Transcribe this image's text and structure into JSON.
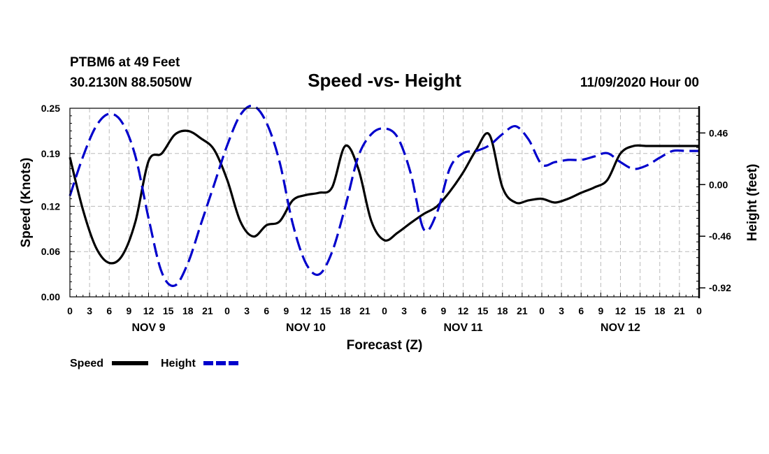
{
  "header": {
    "station": "PTBM6 at 49 Feet",
    "location": "30.2130N 88.5050W",
    "title": "Speed -vs- Height",
    "date": "11/09/2020 Hour 00"
  },
  "colors": {
    "speed": "#000000",
    "height": "#0000cc",
    "grid": "#bbbbbb"
  },
  "chart_data": {
    "type": "line",
    "title": "Speed -vs- Height",
    "xlabel": "Forecast (Z)",
    "ylabel": "Speed (Knots)",
    "ylabel_right": "Height (feet)",
    "xlim": [
      0,
      96
    ],
    "ylim": [
      0,
      0.25
    ],
    "ylim_right": [
      -1.0,
      0.68
    ],
    "x_tick_labels": [
      "0",
      "3",
      "6",
      "9",
      "12",
      "15",
      "18",
      "21",
      "0",
      "3",
      "6",
      "9",
      "12",
      "15",
      "18",
      "21",
      "0",
      "3",
      "6",
      "9",
      "12",
      "15",
      "18",
      "21",
      "0",
      "3",
      "6",
      "9",
      "12",
      "15",
      "18",
      "21",
      "0"
    ],
    "day_labels": [
      {
        "label": "NOV 9",
        "hour": 12
      },
      {
        "label": "NOV 10",
        "hour": 36
      },
      {
        "label": "NOV 11",
        "hour": 60
      },
      {
        "label": "NOV 12",
        "hour": 84
      }
    ],
    "y_ticks": [
      0.0,
      0.06,
      0.12,
      0.19,
      0.25
    ],
    "y_tick_labels": [
      "0.00",
      "0.06",
      "0.12",
      "0.19",
      "0.25"
    ],
    "y_right_ticks": [
      -0.92,
      -0.46,
      0.0,
      0.46
    ],
    "y_right_tick_labels": [
      "-0.92",
      "-0.46",
      "0.00",
      "0.46"
    ],
    "series": [
      {
        "name": "Speed",
        "axis": "left",
        "style": "solid",
        "x": [
          0,
          2,
          4,
          6,
          8,
          10,
          12,
          14,
          16,
          18,
          20,
          22,
          24,
          26,
          28,
          30,
          32,
          34,
          36,
          38,
          40,
          42,
          44,
          46,
          48,
          50,
          52,
          54,
          56,
          58,
          60,
          62,
          64,
          66,
          68,
          70,
          72,
          74,
          76,
          78,
          80,
          82,
          84,
          86,
          88,
          90,
          92,
          94,
          96
        ],
        "values": [
          0.185,
          0.115,
          0.065,
          0.045,
          0.055,
          0.1,
          0.18,
          0.19,
          0.215,
          0.22,
          0.21,
          0.195,
          0.155,
          0.1,
          0.08,
          0.095,
          0.1,
          0.128,
          0.135,
          0.138,
          0.145,
          0.2,
          0.17,
          0.1,
          0.075,
          0.085,
          0.098,
          0.11,
          0.12,
          0.14,
          0.165,
          0.195,
          0.215,
          0.145,
          0.125,
          0.128,
          0.13,
          0.125,
          0.13,
          0.138,
          0.145,
          0.155,
          0.19,
          0.2,
          0.2,
          0.2,
          0.2,
          0.2,
          0.2
        ]
      },
      {
        "name": "Height",
        "axis": "right",
        "style": "dashed",
        "x": [
          0,
          2,
          4,
          6,
          8,
          10,
          12,
          14,
          16,
          18,
          20,
          22,
          24,
          26,
          28,
          30,
          32,
          34,
          36,
          38,
          40,
          42,
          44,
          46,
          48,
          50,
          52,
          54,
          56,
          58,
          60,
          62,
          64,
          66,
          68,
          70,
          72,
          74,
          76,
          78,
          80,
          82,
          84,
          86,
          88,
          90,
          92,
          94,
          96
        ],
        "values": [
          -0.1,
          0.25,
          0.52,
          0.63,
          0.55,
          0.25,
          -0.3,
          -0.78,
          -0.9,
          -0.7,
          -0.35,
          0.0,
          0.35,
          0.62,
          0.7,
          0.55,
          0.2,
          -0.35,
          -0.7,
          -0.8,
          -0.6,
          -0.2,
          0.25,
          0.45,
          0.5,
          0.42,
          0.1,
          -0.4,
          -0.25,
          0.15,
          0.28,
          0.3,
          0.35,
          0.45,
          0.52,
          0.4,
          0.18,
          0.2,
          0.22,
          0.22,
          0.25,
          0.28,
          0.2,
          0.14,
          0.17,
          0.24,
          0.3,
          0.3,
          0.3
        ]
      }
    ],
    "legend": [
      {
        "label": "Speed",
        "style": "solid"
      },
      {
        "label": "Height",
        "style": "dashed"
      }
    ],
    "grid": true
  }
}
